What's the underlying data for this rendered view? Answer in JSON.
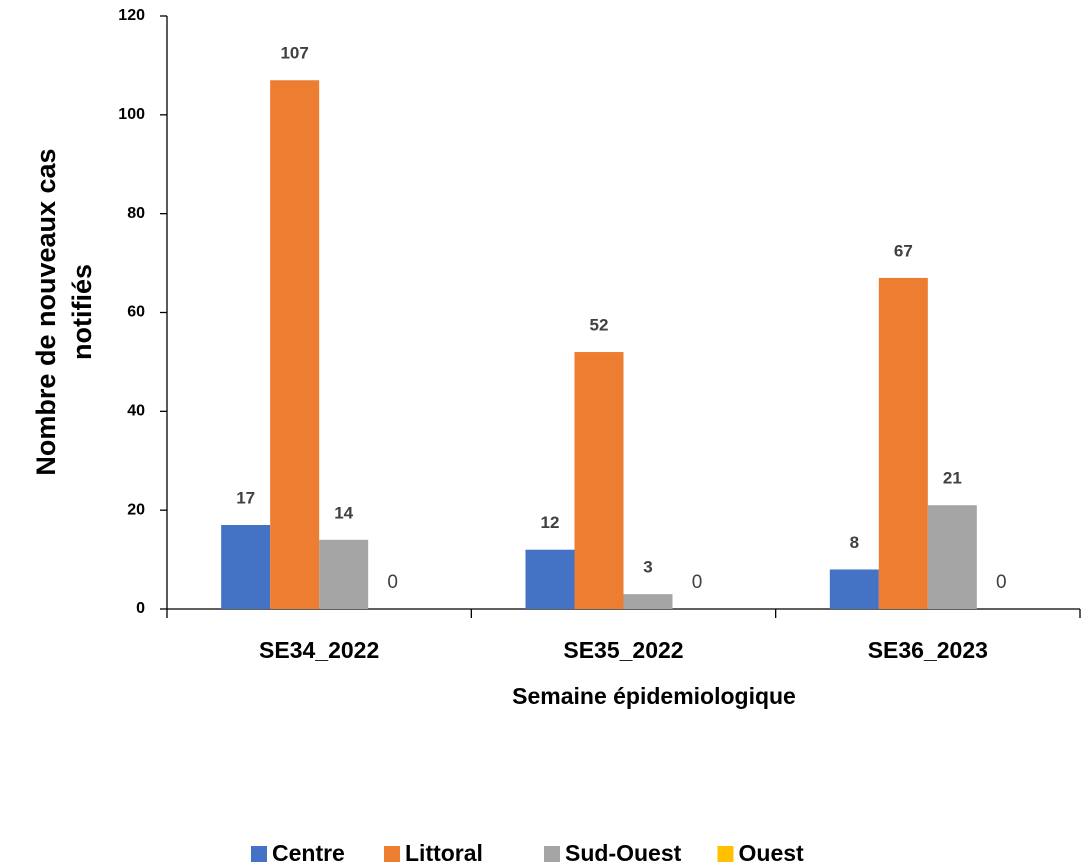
{
  "chart_data": {
    "type": "bar",
    "ylabel": [
      "Nombre de nouveaux cas",
      "notifiés"
    ],
    "xlabel": "Semaine épidemiologique",
    "categories": [
      "SE34_2022",
      "SE35_2022",
      "SE36_2023"
    ],
    "series": [
      {
        "name": "Centre",
        "color": "#4472c4",
        "values": [
          17,
          12,
          8
        ]
      },
      {
        "name": "Littoral",
        "color": "#ed7d31",
        "values": [
          107,
          52,
          67
        ]
      },
      {
        "name": "Sud-Ouest",
        "color": "#a5a5a5",
        "values": [
          14,
          3,
          21
        ]
      },
      {
        "name": "Ouest",
        "color": "#ffc000",
        "values": [
          0,
          0,
          0
        ]
      }
    ],
    "ylim": [
      0,
      120
    ],
    "yticks": [
      0,
      20,
      40,
      60,
      80,
      100,
      120
    ],
    "grid": false,
    "legend": "bottom"
  }
}
